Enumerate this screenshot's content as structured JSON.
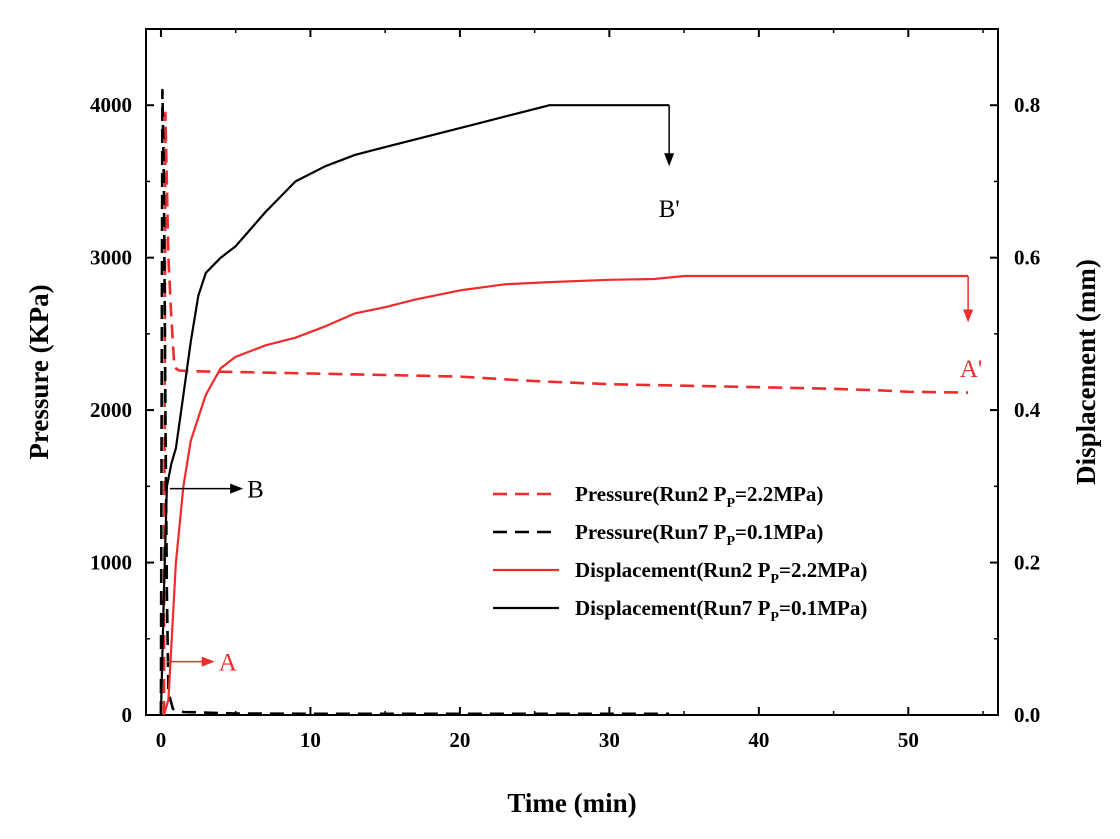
{
  "chart_data": {
    "type": "line",
    "xlabel": "Time (min)",
    "ylabel": "Pressure (KPa)",
    "y2label": "Displacement (mm)",
    "xlim": [
      -1,
      56
    ],
    "ylim": [
      0,
      4500
    ],
    "y2lim": [
      0,
      0.9
    ],
    "x_ticks": [
      0,
      10,
      20,
      30,
      40,
      50
    ],
    "x_tick_labels": [
      "0",
      "10",
      "20",
      "30",
      "40",
      "50"
    ],
    "y_ticks": [
      0,
      1000,
      2000,
      3000,
      4000
    ],
    "y_tick_labels": [
      "0",
      "1000",
      "2000",
      "3000",
      "4000"
    ],
    "y2_ticks": [
      0,
      0.2,
      0.4,
      0.6,
      0.8
    ],
    "y2_tick_labels": [
      "0.0",
      "0.2",
      "0.4",
      "0.6",
      "0.8"
    ],
    "colors": {
      "red": "#ee2c2c",
      "black": "#000000"
    },
    "legend_position": "lower-right",
    "series": [
      {
        "name": "Pressure(Run2 P_P=2.2MPa)",
        "legend_main": "Pressure(Run2 P",
        "legend_sub": "P",
        "legend_tail": "=2.2MPa)",
        "axis": "left",
        "color": "red",
        "style": "dashed",
        "x": [
          0.2,
          0.3,
          0.5,
          0.7,
          0.9,
          1.2,
          2,
          5,
          10,
          15,
          20,
          25,
          30,
          35,
          40,
          45,
          48,
          50,
          54
        ],
        "y": [
          0,
          3950,
          3000,
          2600,
          2280,
          2260,
          2255,
          2250,
          2240,
          2230,
          2220,
          2190,
          2170,
          2160,
          2150,
          2140,
          2130,
          2120,
          2115
        ]
      },
      {
        "name": "Pressure(Run7 P_P=0.1MPa)",
        "legend_main": "Pressure(Run7 P",
        "legend_sub": "P",
        "legend_tail": "=0.1MPa)",
        "axis": "left",
        "color": "black",
        "style": "dashed",
        "x": [
          0.0,
          0.1,
          0.2,
          0.3,
          0.4,
          0.5,
          0.8,
          1.5,
          5,
          10,
          20,
          30,
          34
        ],
        "y": [
          0,
          4100,
          3500,
          2000,
          800,
          150,
          40,
          20,
          10,
          8,
          8,
          8,
          8
        ]
      },
      {
        "name": "Displacement(Run2 P_P=2.2MPa)",
        "legend_main": "Displacement(Run2 P",
        "legend_sub": "P",
        "legend_tail": "=2.2MPa)",
        "axis": "right",
        "color": "red",
        "style": "solid",
        "x": [
          0.2,
          0.5,
          1,
          1.5,
          2,
          3,
          4,
          5,
          7,
          9,
          11,
          13,
          15,
          17,
          20,
          23,
          26,
          30,
          33,
          35,
          40,
          45,
          50,
          54
        ],
        "y": [
          0,
          0.02,
          0.2,
          0.3,
          0.36,
          0.42,
          0.455,
          0.47,
          0.485,
          0.495,
          0.51,
          0.527,
          0.535,
          0.545,
          0.557,
          0.565,
          0.568,
          0.571,
          0.572,
          0.576,
          0.576,
          0.576,
          0.576,
          0.576
        ]
      },
      {
        "name": "Displacement(Run7 P_P=0.1MPa)",
        "legend_main": "Displacement(Run7 P",
        "legend_sub": "P",
        "legend_tail": "=0.1MPa)",
        "axis": "right",
        "color": "black",
        "style": "solid",
        "x": [
          0.0,
          0.2,
          0.4,
          0.7,
          1,
          1.5,
          2,
          2.5,
          3,
          4,
          5,
          7,
          9,
          11,
          13,
          15,
          18,
          21,
          24,
          26,
          28,
          30,
          32,
          34
        ],
        "y": [
          0,
          0.16,
          0.3,
          0.33,
          0.35,
          0.42,
          0.49,
          0.55,
          0.58,
          0.6,
          0.615,
          0.66,
          0.7,
          0.72,
          0.735,
          0.745,
          0.76,
          0.775,
          0.79,
          0.8,
          0.8,
          0.8,
          0.8,
          0.8
        ]
      }
    ],
    "annotations": [
      {
        "label": "A",
        "color": "red",
        "x": 0.4,
        "y2": 0.07,
        "arrow": "right",
        "arrow_to_x": 3.6
      },
      {
        "label": "B",
        "color": "black",
        "x": 0.6,
        "y2": 0.297,
        "arrow": "right",
        "arrow_to_x": 5.5
      },
      {
        "label": "A'",
        "color": "red",
        "x": 54,
        "y2": 0.576,
        "arrow": "down",
        "arrow_to_y2": 0.515,
        "label_pos_x": 54.2,
        "label_pos_y2": 0.455
      },
      {
        "label": "B'",
        "color": "black",
        "x": 34,
        "y2": 0.8,
        "arrow": "down",
        "arrow_to_y2": 0.72,
        "label_pos_x": 34,
        "label_pos_y2": 0.665
      }
    ]
  }
}
